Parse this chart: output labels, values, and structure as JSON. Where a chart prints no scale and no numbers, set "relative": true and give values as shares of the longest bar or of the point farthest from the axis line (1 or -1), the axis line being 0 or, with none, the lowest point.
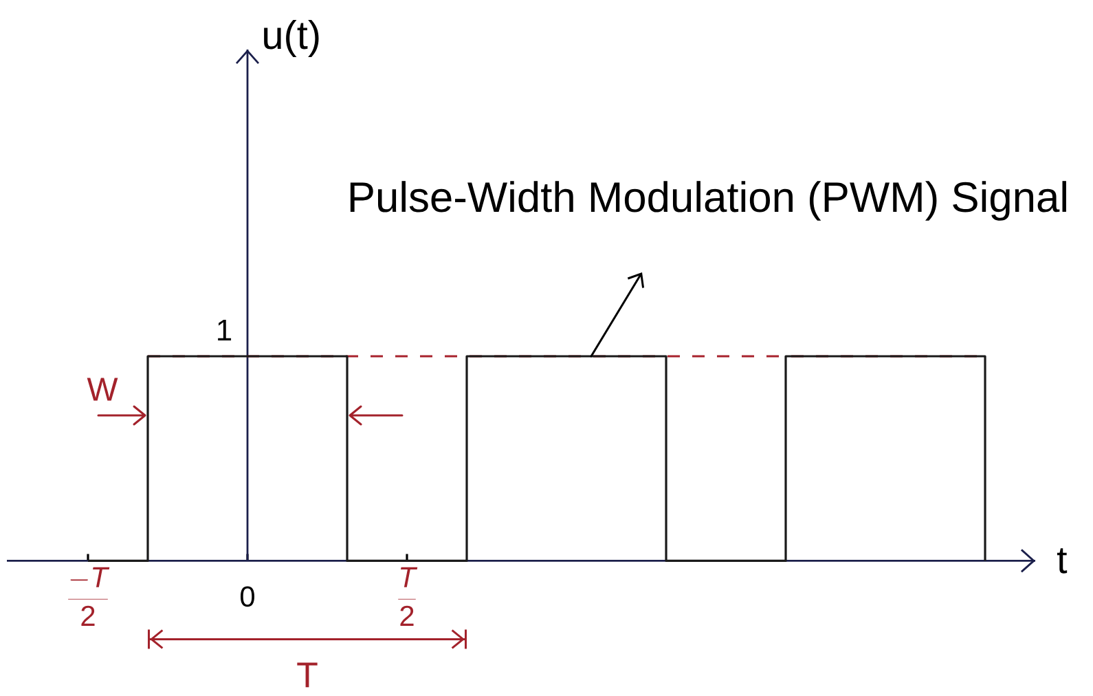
{
  "chart_data": {
    "type": "step",
    "relative": true,
    "xlabel": "t",
    "categories": [
      "\\frac{-T}{2}",
      null,
      null,
      null,
      null,
      null,
      null,
      null,
      "0",
      null,
      null,
      null,
      null,
      null,
      null,
      null,
      "\\frac{T}{2}",
      null,
      null,
      null,
      null,
      null,
      null,
      null,
      null,
      null,
      null,
      null,
      null,
      null,
      null,
      null,
      null,
      null,
      null,
      null,
      null,
      null,
      null,
      null,
      null,
      null,
      null,
      null,
      null,
      null
    ],
    "values": [
      0,
      0,
      0,
      1,
      1,
      1,
      1,
      1,
      1,
      1,
      1,
      1,
      1,
      0,
      0,
      0,
      0,
      0,
      0,
      1,
      1,
      1,
      1,
      1,
      1,
      1,
      1,
      1,
      1,
      0,
      0,
      0,
      0,
      0,
      0,
      1,
      1,
      1,
      1,
      1,
      1,
      1,
      1,
      1,
      1,
      0
    ],
    "color": "#1a1a1a",
    "ref_lines": [
      {
        "axis": "y",
        "value": 1,
        "color": "#a8232d",
        "line_style": "dashed"
      }
    ],
    "annotations": [
      "Pulse-Width Modulation (PWM) Signal",
      {
        "text": "1",
        "x": "0",
        "y": 1
      },
      "W",
      "T",
      "u(t)"
    ]
  }
}
